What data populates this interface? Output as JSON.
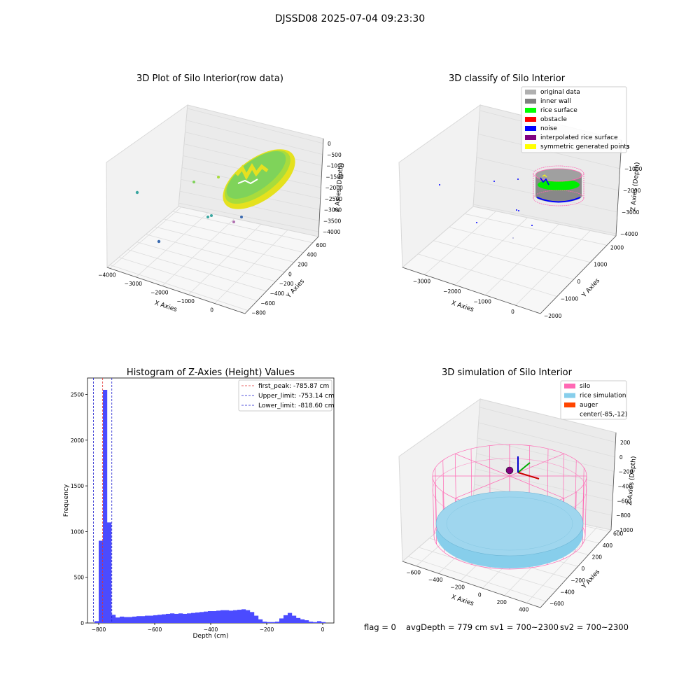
{
  "figure": {
    "suptitle": "DJSSD08 2025-07-04 09:23:30",
    "status": {
      "flag": "flag = 0",
      "avg": "avgDepth = 779 cm",
      "sv1": "sv1 = 700~2300",
      "sv2": "sv2 = 700~2300"
    }
  },
  "chart_data": [
    {
      "type": "scatter",
      "title": "3D Plot of Silo Interior(row data)",
      "xlabel": "X Axies",
      "ylabel": "Y Axies",
      "zlabel": "Z Axies (Depth)",
      "x_ticks": [
        "−4000",
        "−3000",
        "−2000",
        "−1000",
        "0"
      ],
      "y_ticks": [
        "−800",
        "−600",
        "−400",
        "−200",
        "0",
        "200",
        "400",
        "600"
      ],
      "z_ticks": [
        "0",
        "−500",
        "−1000",
        "−1500",
        "−2000",
        "−2500",
        "−3000",
        "−3500",
        "−4000"
      ],
      "colors": {
        "ring_inner": "#7fd35a",
        "ring_outer": "#f0e61e",
        "outlier": "#3aa6a0"
      }
    },
    {
      "type": "scatter",
      "title": "3D classify of Silo Interior",
      "xlabel": "X Axies",
      "ylabel": "Y Axies",
      "zlabel": "Z Axies (Depth)",
      "x_ticks": [
        "−3000",
        "−2000",
        "−1000",
        "0"
      ],
      "y_ticks": [
        "−2000",
        "−1000",
        "0",
        "1000",
        "2000"
      ],
      "z_ticks": [
        "0",
        "−1000",
        "−2000",
        "−3000",
        "−4000"
      ],
      "legend": [
        {
          "label": "original data",
          "color": "#b0b0b0"
        },
        {
          "label": "inner wall",
          "color": "#808080"
        },
        {
          "label": "rice surface",
          "color": "#00ff00"
        },
        {
          "label": "obstacle",
          "color": "#ff0000"
        },
        {
          "label": "noise",
          "color": "#0000ff"
        },
        {
          "label": "interpolated rice surface",
          "color": "#800080"
        },
        {
          "label": "symmetric generated points",
          "color": "#ffff00"
        }
      ]
    },
    {
      "type": "bar",
      "title": "Histogram of Z-Axies (Height) Values",
      "xlabel": "Depth (cm)",
      "ylabel": "Frequency",
      "xlim": [
        -840,
        40
      ],
      "ylim": [
        0,
        2680
      ],
      "x_ticks": [
        -800,
        -600,
        -400,
        -200,
        0
      ],
      "y_ticks": [
        0,
        500,
        1000,
        1500,
        2000,
        2500
      ],
      "bin_width": 15,
      "bin_starts": [
        -815,
        -800,
        -785,
        -770,
        -755,
        -740,
        -725,
        -710,
        -695,
        -680,
        -665,
        -650,
        -635,
        -620,
        -605,
        -590,
        -575,
        -560,
        -545,
        -530,
        -515,
        -500,
        -485,
        -470,
        -455,
        -440,
        -425,
        -410,
        -395,
        -380,
        -365,
        -350,
        -335,
        -320,
        -305,
        -290,
        -275,
        -260,
        -245,
        -230,
        -215,
        -200,
        -185,
        -170,
        -155,
        -140,
        -125,
        -110,
        -95,
        -80,
        -65,
        -50,
        -35,
        -20,
        -5
      ],
      "counts": [
        20,
        900,
        2550,
        1100,
        90,
        60,
        70,
        65,
        65,
        70,
        75,
        75,
        80,
        80,
        85,
        90,
        95,
        100,
        105,
        100,
        105,
        100,
        105,
        110,
        115,
        120,
        125,
        130,
        130,
        135,
        140,
        140,
        135,
        140,
        145,
        150,
        140,
        120,
        80,
        40,
        15,
        10,
        10,
        15,
        50,
        85,
        110,
        80,
        55,
        40,
        30,
        15,
        10,
        20,
        10
      ],
      "bar_color": "#4b4bff",
      "vlines": [
        {
          "label": "first_peak: -785.87 cm",
          "x": -785.87,
          "color": "#e03030"
        },
        {
          "label": "Upper_limit: -753.14 cm",
          "x": -753.14,
          "color": "#1a1acc"
        },
        {
          "label": "Lower_limit: -818.60 cm",
          "x": -818.6,
          "color": "#1a1acc"
        }
      ],
      "tick_labels_x": [
        "−800",
        "−600",
        "−400",
        "−200",
        "0"
      ],
      "tick_labels_y": [
        "0",
        "500",
        "1000",
        "1500",
        "2000",
        "2500"
      ]
    },
    {
      "type": "scatter",
      "title": "3D simulation of Silo Interior",
      "xlabel": "X Axies",
      "ylabel": "Y Axies",
      "zlabel": "Z Axies (Depth)",
      "x_ticks": [
        "−600",
        "−400",
        "−200",
        "0",
        "200",
        "400"
      ],
      "y_ticks": [
        "−600",
        "−400",
        "−200",
        "0",
        "200",
        "400",
        "600"
      ],
      "z_ticks": [
        "200",
        "0",
        "−200",
        "−400",
        "−600",
        "−800",
        "−1000"
      ],
      "legend": [
        {
          "label": "silo",
          "color": "#ff69b4"
        },
        {
          "label": "rice simulation",
          "color": "#87ceeb"
        },
        {
          "label": "auger",
          "color": "#ff4500"
        },
        {
          "label": "center(-85,-12)",
          "color": ""
        }
      ]
    }
  ]
}
